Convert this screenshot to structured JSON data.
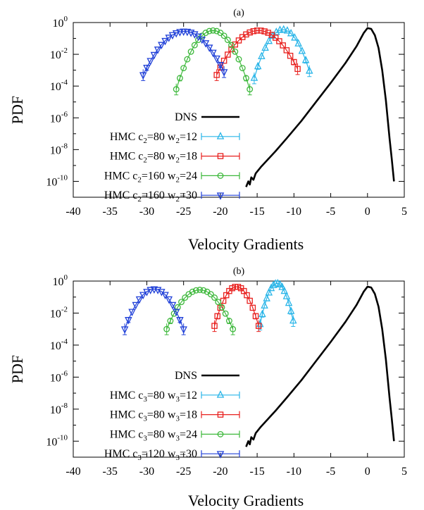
{
  "chart_data": [
    {
      "type": "line",
      "title": "(a)",
      "xlabel": "Velocity Gradients",
      "ylabel": "PDF",
      "xlim": [
        -40,
        5
      ],
      "ylim_log10": [
        -11,
        0
      ],
      "yscale": "log",
      "x_ticks": [
        "-40",
        "-35",
        "-30",
        "-25",
        "-20",
        "-15",
        "-10",
        "-5",
        "0",
        "5"
      ],
      "y_ticks": [
        {
          "base": "10",
          "exp": "0"
        },
        {
          "base": "10",
          "exp": "-2"
        },
        {
          "base": "10",
          "exp": "-4"
        },
        {
          "base": "10",
          "exp": "-6"
        },
        {
          "base": "10",
          "exp": "-8"
        },
        {
          "base": "10",
          "exp": "-10"
        }
      ],
      "legend_position": "lower-left",
      "legend": [
        {
          "text": "DNS"
        },
        {
          "text": "HMC c",
          "sub1": "2",
          "mid": "=80 w",
          "sub2": "2",
          "end": "=12"
        },
        {
          "text": "HMC c",
          "sub1": "2",
          "mid": "=80 w",
          "sub2": "2",
          "end": "=18"
        },
        {
          "text": "HMC c",
          "sub1": "2",
          "mid": "=160 w",
          "sub2": "2",
          "end": "=24"
        },
        {
          "text": "HMC c",
          "sub1": "2",
          "mid": "=160 w",
          "sub2": "2",
          "end": "=30"
        }
      ],
      "series": [
        {
          "name": "DNS",
          "color": "#000000",
          "marker": "none",
          "x": [
            -16.5,
            -16.2,
            -16.0,
            -15.8,
            -15.5,
            -15.2,
            -14.5,
            -13.5,
            -12.5,
            -11.0,
            -9.0,
            -7.0,
            -5.0,
            -3.0,
            -1.5,
            -0.5,
            0.0,
            0.5,
            1.0,
            1.5,
            2.0,
            2.5,
            3.0,
            3.3,
            3.6
          ],
          "y": [
            -10.35,
            -10.0,
            -10.2,
            -9.75,
            -9.9,
            -9.5,
            -9.1,
            -8.6,
            -8.1,
            -7.3,
            -6.2,
            -5.0,
            -3.8,
            -2.55,
            -1.5,
            -0.65,
            -0.35,
            -0.4,
            -0.8,
            -1.6,
            -3.0,
            -4.9,
            -7.3,
            -8.6,
            -10.0
          ]
        },
        {
          "name": "HMC c2=80 w2=12",
          "color": "#29b5e8",
          "marker": "triangle-up",
          "center": -11.5,
          "peak": -0.45,
          "halfwidth": 3.9,
          "step": 0.5,
          "bottom": -3.5
        },
        {
          "name": "HMC c2=80 w2=18",
          "color": "#e8201e",
          "marker": "square",
          "center": -14.8,
          "peak": -0.5,
          "halfwidth": 5.7,
          "step": 0.5,
          "bottom": -3.3
        },
        {
          "name": "HMC c2=160 w2=24",
          "color": "#3db83b",
          "marker": "circle",
          "center": -21.0,
          "peak": -0.5,
          "halfwidth": 5.0,
          "step": 0.5,
          "bottom": -4.2
        },
        {
          "name": "HMC c2=160 w2=30",
          "color": "#2040d8",
          "marker": "triangle-down",
          "center": -24.9,
          "peak": -0.55,
          "halfwidth": 5.6,
          "step": 0.5,
          "bottom": -3.3
        }
      ]
    },
    {
      "type": "line",
      "title": "(b)",
      "xlabel": "Velocity Gradients",
      "ylabel": "PDF",
      "xlim": [
        -40,
        5
      ],
      "ylim_log10": [
        -11,
        0
      ],
      "yscale": "log",
      "x_ticks": [
        "-40",
        "-35",
        "-30",
        "-25",
        "-20",
        "-15",
        "-10",
        "-5",
        "0",
        "5"
      ],
      "y_ticks": [
        {
          "base": "10",
          "exp": "0"
        },
        {
          "base": "10",
          "exp": "-2"
        },
        {
          "base": "10",
          "exp": "-4"
        },
        {
          "base": "10",
          "exp": "-6"
        },
        {
          "base": "10",
          "exp": "-8"
        },
        {
          "base": "10",
          "exp": "-10"
        }
      ],
      "legend_position": "lower-left",
      "legend": [
        {
          "text": "DNS"
        },
        {
          "text": "HMC c",
          "sub1": "3",
          "mid": "=80 w",
          "sub2": "3",
          "end": "=12"
        },
        {
          "text": "HMC c",
          "sub1": "3",
          "mid": "=80 w",
          "sub2": "3",
          "end": "=18"
        },
        {
          "text": "HMC c",
          "sub1": "3",
          "mid": "=80 w",
          "sub2": "3",
          "end": "=24"
        },
        {
          "text": "HMC c",
          "sub1": "3",
          "mid": "=120 w",
          "sub2": "3",
          "end": "=30"
        }
      ],
      "series": [
        {
          "name": "DNS",
          "color": "#000000",
          "marker": "none",
          "x": [
            -16.5,
            -16.2,
            -16.0,
            -15.8,
            -15.5,
            -15.2,
            -14.5,
            -13.5,
            -12.5,
            -11.0,
            -9.0,
            -7.0,
            -5.0,
            -3.0,
            -1.5,
            -0.5,
            0.0,
            0.5,
            1.0,
            1.5,
            2.0,
            2.5,
            3.0,
            3.3,
            3.6
          ],
          "y": [
            -10.35,
            -10.0,
            -10.2,
            -9.75,
            -9.9,
            -9.5,
            -9.1,
            -8.6,
            -8.1,
            -7.3,
            -6.2,
            -5.0,
            -3.8,
            -2.55,
            -1.5,
            -0.65,
            -0.35,
            -0.4,
            -0.8,
            -1.6,
            -3.0,
            -4.9,
            -7.3,
            -8.6,
            -10.0
          ]
        },
        {
          "name": "HMC c3=80 w3=12",
          "color": "#29b5e8",
          "marker": "triangle-up",
          "center": -12.3,
          "peak": -0.15,
          "halfwidth": 2.3,
          "step": 0.3,
          "bottom": -2.7
        },
        {
          "name": "HMC c3=80 w3=18",
          "color": "#e8201e",
          "marker": "square",
          "center": -17.8,
          "peak": -0.35,
          "halfwidth": 3.0,
          "step": 0.4,
          "bottom": -2.8
        },
        {
          "name": "HMC c3=80 w3=24",
          "color": "#3db83b",
          "marker": "circle",
          "center": -22.8,
          "peak": -0.55,
          "halfwidth": 4.5,
          "step": 0.5,
          "bottom": -3.0
        },
        {
          "name": "HMC c3=120 w3=30",
          "color": "#2040d8",
          "marker": "triangle-down",
          "center": -29.0,
          "peak": -0.5,
          "halfwidth": 4.0,
          "step": 0.5,
          "bottom": -3.0
        }
      ]
    }
  ]
}
